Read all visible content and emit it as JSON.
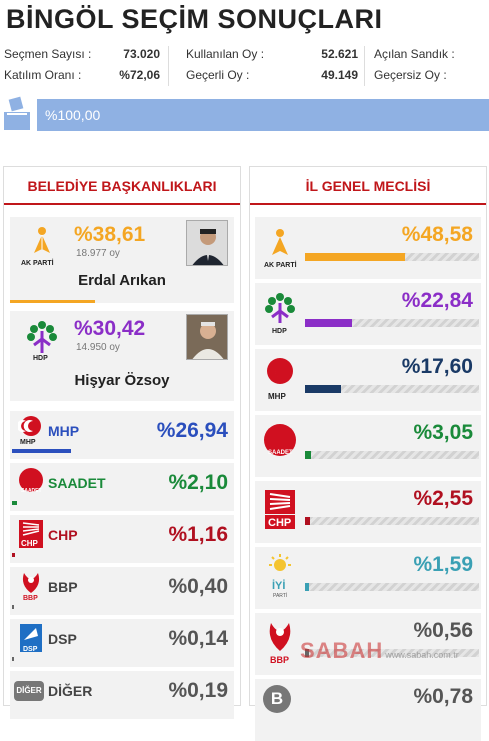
{
  "header": {
    "title": "BİNGÖL SEÇİM SONUÇLARI"
  },
  "stats": {
    "voters_label": "Seçmen Sayısı :",
    "voters_value": "73.020",
    "turnout_label": "Katılım Oranı :",
    "turnout_value": "%72,06",
    "used_label": "Kullanılan Oy :",
    "used_value": "52.621",
    "valid_label": "Geçerli Oy :",
    "valid_value": "49.149",
    "opened_label": "Açılan Sandık :",
    "opened_value": "",
    "invalid_label": "Geçersiz Oy :",
    "invalid_value": ""
  },
  "ballot_progress": {
    "label": "%100,00",
    "fraction": 1.0
  },
  "mayor": {
    "heading": "BELEDİYE BAŞKANLIKLARI",
    "candidates": [
      {
        "party_logo_text": "AK PARTİ",
        "pct": "%38,61",
        "votes": "18.977 oy",
        "name": "Erdal Arıkan",
        "color": "#f4a623",
        "fraction": 0.3861
      },
      {
        "party_logo_text": "HDP",
        "pct": "%30,42",
        "votes": "14.950 oy",
        "name": "Hişyar Özsoy",
        "color": "#8b2ec7",
        "fraction": 0.3042
      }
    ],
    "parties": [
      {
        "logo_text": "MHP",
        "name": "MHP",
        "pct": "%26,94",
        "color": "#2b4fbd",
        "fraction": 0.2694
      },
      {
        "logo_text": "SAADET",
        "name": "SAADET",
        "pct": "%2,10",
        "color": "#1a8a3a",
        "fraction": 0.021
      },
      {
        "logo_text": "CHP",
        "name": "CHP",
        "pct": "%1,16",
        "color": "#b01020",
        "fraction": 0.0116
      },
      {
        "logo_text": "BBP",
        "name": "BBP",
        "pct": "%0,40",
        "color": "#666666",
        "fraction": 0.004
      },
      {
        "logo_text": "DSP",
        "name": "DSP",
        "pct": "%0,14",
        "color": "#666666",
        "fraction": 0.0014
      },
      {
        "logo_text": "DİĞER",
        "name": "DİĞER",
        "pct": "%0,19",
        "color": "#666666",
        "fraction": 0.0019
      }
    ]
  },
  "council": {
    "heading": "İL GENEL MECLİSİ",
    "parties": [
      {
        "logo_text": "AK PARTİ",
        "pct": "%48,58",
        "color": "#f4a623",
        "fraction": 0.4858
      },
      {
        "logo_text": "HDP",
        "pct": "%22,84",
        "color": "#8b2ec7",
        "fraction": 0.2284
      },
      {
        "logo_text": "MHP",
        "pct": "%17,60",
        "color": "#1a3a66",
        "fraction": 0.176
      },
      {
        "logo_text": "SAADET",
        "pct": "%3,05",
        "color": "#1a8a3a",
        "fraction": 0.0305
      },
      {
        "logo_text": "CHP",
        "pct": "%2,55",
        "color": "#b01020",
        "fraction": 0.0255
      },
      {
        "logo_text": "İYİ",
        "pct": "%1,59",
        "color": "#3aa0b4",
        "fraction": 0.0159
      },
      {
        "logo_text": "BBP",
        "pct": "%0,56",
        "color": "#666666",
        "fraction": 0.0056
      },
      {
        "logo_text": "B",
        "pct": "%0,78",
        "color": "#666666",
        "fraction": 0.0078
      }
    ]
  },
  "watermark": {
    "brand": "SABAH",
    "domain": "www.sabah.com.tr"
  },
  "icons": [
    "ballot-box-icon",
    "akparti-logo-icon",
    "hdp-logo-icon",
    "mhp-logo-icon",
    "saadet-logo-icon",
    "chp-logo-icon",
    "bbp-logo-icon",
    "dsp-logo-icon",
    "iyi-logo-icon"
  ]
}
